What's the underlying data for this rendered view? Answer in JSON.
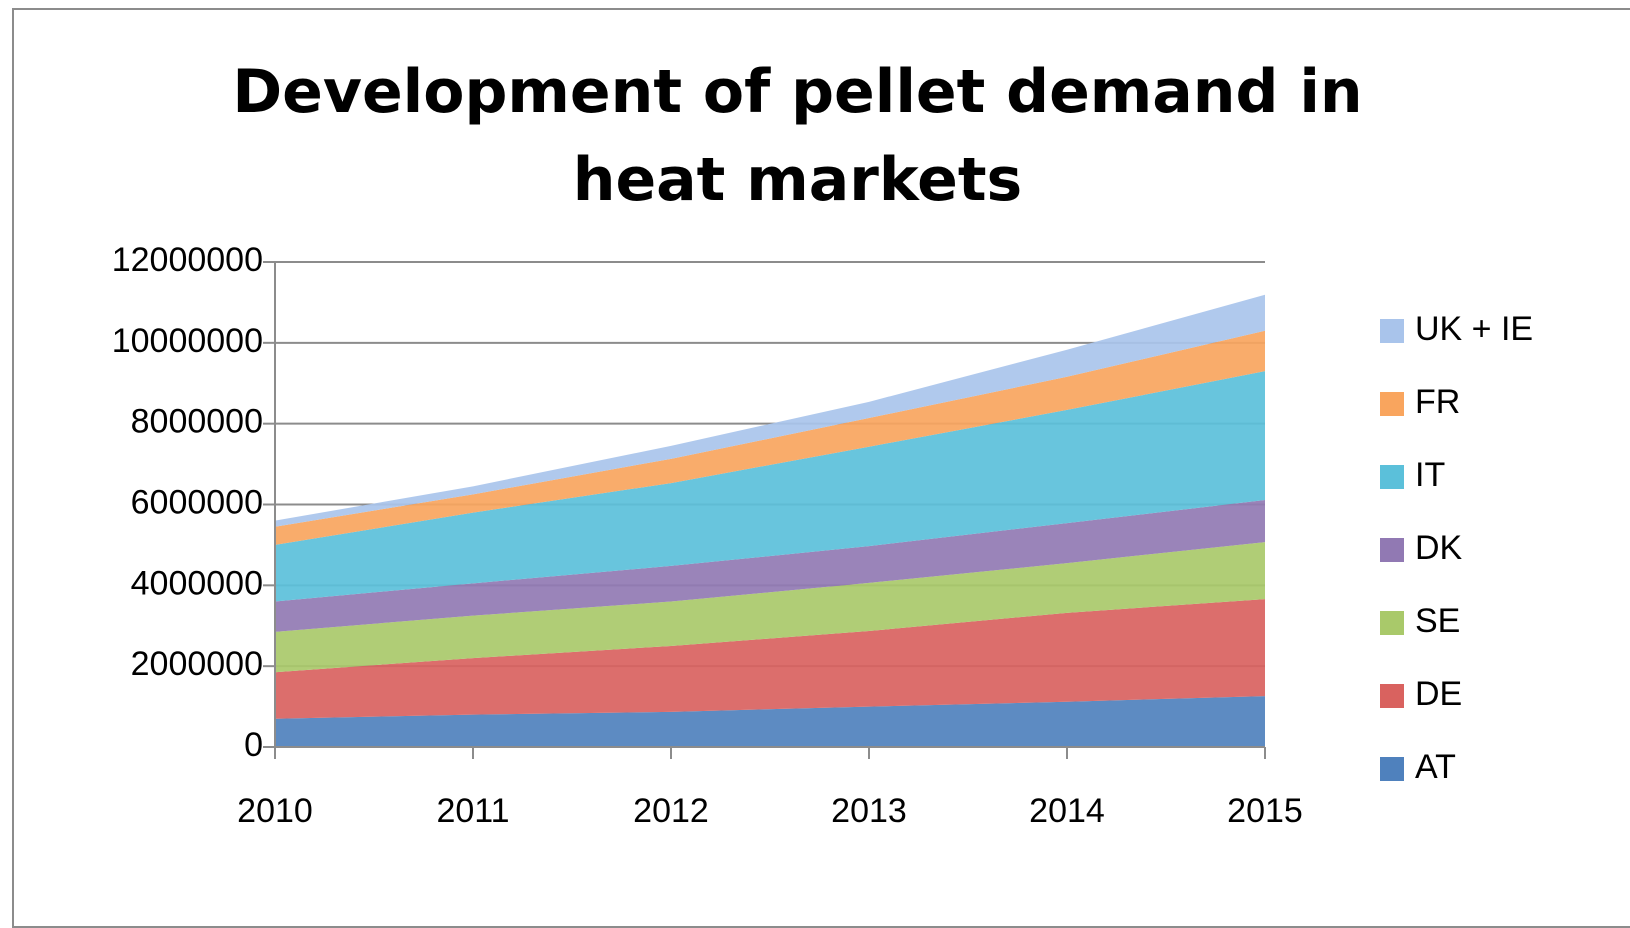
{
  "chart_data": {
    "type": "stacked_area",
    "title": "Development of pellet demand in heat markets",
    "x": [
      2010,
      2011,
      2012,
      2013,
      2014,
      2015
    ],
    "xlim": [
      2010,
      2015
    ],
    "xticks": [
      2010,
      2011,
      2012,
      2013,
      2014,
      2015
    ],
    "ylim": [
      0,
      12000000
    ],
    "yticks": [
      0,
      2000000,
      4000000,
      6000000,
      8000000,
      10000000,
      12000000
    ],
    "grid": true,
    "legend": "right",
    "series": [
      {
        "name": "AT",
        "color": "#4f81bd",
        "values": [
          700000,
          800000,
          870000,
          1000000,
          1120000,
          1260000
        ]
      },
      {
        "name": "DE",
        "color": "#d9625f",
        "values": [
          1150000,
          1400000,
          1630000,
          1870000,
          2200000,
          2400000
        ]
      },
      {
        "name": "SE",
        "color": "#a9c96a",
        "values": [
          1000000,
          1050000,
          1100000,
          1190000,
          1230000,
          1410000
        ]
      },
      {
        "name": "DK",
        "color": "#9179b3",
        "values": [
          750000,
          800000,
          880000,
          910000,
          990000,
          1040000
        ]
      },
      {
        "name": "IT",
        "color": "#5bc0da",
        "values": [
          1400000,
          1750000,
          2050000,
          2460000,
          2800000,
          3190000
        ]
      },
      {
        "name": "FR",
        "color": "#f9a55e",
        "values": [
          450000,
          450000,
          600000,
          710000,
          820000,
          1000000
        ]
      },
      {
        "name": "UK + IE",
        "color": "#a9c4eb",
        "values": [
          150000,
          200000,
          320000,
          400000,
          670000,
          890000
        ]
      }
    ]
  }
}
